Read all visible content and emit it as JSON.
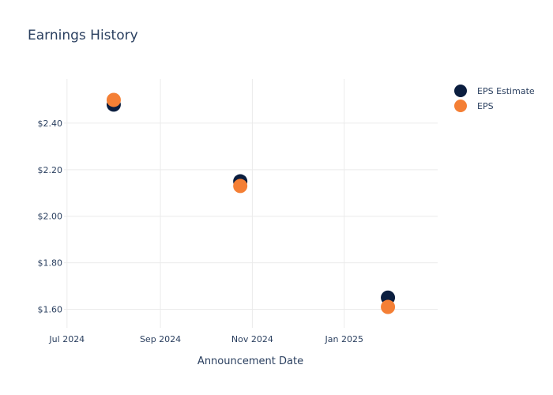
{
  "chart_data": {
    "type": "scatter",
    "title": "Earnings History",
    "xlabel": "Announcement Date",
    "ylabel": "",
    "x_ticks": [
      {
        "date": "2024-07-01",
        "label": "Jul 2024"
      },
      {
        "date": "2024-09-01",
        "label": "Sep 2024"
      },
      {
        "date": "2024-11-01",
        "label": "Nov 2024"
      },
      {
        "date": "2025-01-01",
        "label": "Jan 2025"
      }
    ],
    "y_ticks": [
      {
        "value": 1.6,
        "label": "$1.60"
      },
      {
        "value": 1.8,
        "label": "$1.80"
      },
      {
        "value": 2.0,
        "label": "$2.00"
      },
      {
        "value": 2.2,
        "label": "$2.20"
      },
      {
        "value": 2.4,
        "label": "$2.40"
      }
    ],
    "xlim": [
      "2024-06-29",
      "2025-03-04"
    ],
    "ylim": [
      1.52,
      2.59
    ],
    "grid": true,
    "legend": "top-right",
    "series": [
      {
        "name": "EPS Estimate",
        "color": "#0b1e3f",
        "points": [
          {
            "x": "2024-08-01",
            "y": 2.48
          },
          {
            "x": "2024-10-24",
            "y": 2.15
          },
          {
            "x": "2025-01-30",
            "y": 1.65
          }
        ]
      },
      {
        "name": "EPS",
        "color": "#f47f35",
        "points": [
          {
            "x": "2024-08-01",
            "y": 2.5
          },
          {
            "x": "2024-10-24",
            "y": 2.13
          },
          {
            "x": "2025-01-30",
            "y": 1.61
          }
        ]
      }
    ]
  }
}
